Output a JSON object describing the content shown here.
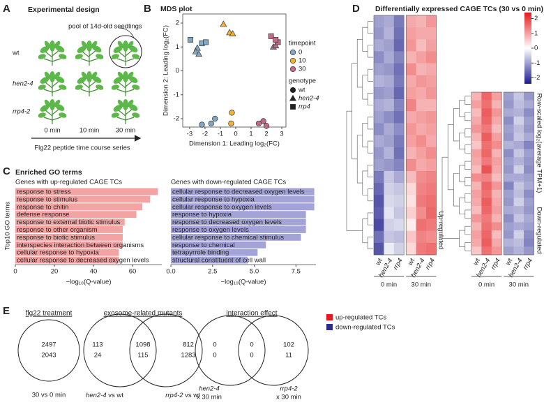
{
  "panels": [
    {
      "letter": "A",
      "title": "Experimental design"
    },
    {
      "letter": "B"
    },
    {
      "letter": "C",
      "title": "Enriched GO terms"
    },
    {
      "letter": "D"
    },
    {
      "letter": "E"
    }
  ],
  "design": {
    "pool_label": "pool of 14d-old seedlings",
    "genotypes": [
      "wt",
      "hen2-4",
      "rrp4-2"
    ],
    "times": [
      "0 min",
      "10 min",
      "30 min"
    ],
    "series_label": "Flg22 peptide time course series"
  },
  "chart_data": [
    {
      "type": "scatter",
      "title": "MDS plot",
      "xlabel": "Dimension 1: Leading log₂(FC)",
      "ylabel": "Dimension 2: Leading log₂(FC)",
      "xlim": [
        -3.45,
        3.27
      ],
      "ylim": [
        -2.35,
        2.38
      ],
      "xticks": [
        -3,
        -2,
        -1,
        0,
        1,
        2,
        3
      ],
      "yticks": [
        -2,
        -1,
        0,
        1,
        2
      ],
      "legend": {
        "color_title": "timepoint",
        "color_items": [
          "0",
          "10",
          "30"
        ],
        "colors": [
          "#7ea6c7",
          "#f2b134",
          "#c06a86"
        ],
        "shape_title": "genotype",
        "shape_items": [
          "wt",
          "hen2-4",
          "rrp4"
        ],
        "shapes": [
          "circle",
          "triangle",
          "square"
        ]
      },
      "series": [
        {
          "color": 0,
          "shape": 0,
          "x": [
            -2.2,
            -1.6,
            -1.35
          ],
          "y": [
            -2.25,
            -2.2,
            -2.0
          ]
        },
        {
          "color": 0,
          "shape": 1,
          "x": [
            -2.5,
            -2.6,
            -2.4
          ],
          "y": [
            0.95,
            0.8,
            0.7
          ]
        },
        {
          "color": 0,
          "shape": 2,
          "x": [
            -2.95,
            -2.2,
            -1.95
          ],
          "y": [
            1.3,
            1.15,
            1.2
          ]
        },
        {
          "color": 1,
          "shape": 0,
          "x": [
            -0.25,
            -0.3
          ],
          "y": [
            -1.75,
            -2.2
          ]
        },
        {
          "color": 1,
          "shape": 1,
          "x": [
            -0.8,
            -0.4,
            -0.2
          ],
          "y": [
            1.95,
            1.6,
            1.55
          ]
        },
        {
          "color": 2,
          "shape": 0,
          "x": [
            1.5,
            1.8,
            2.0
          ],
          "y": [
            -2.2,
            -2.1,
            -2.3
          ]
        },
        {
          "color": 2,
          "shape": 1,
          "x": [
            2.45,
            2.6
          ],
          "y": [
            1.0,
            1.05
          ]
        },
        {
          "color": 2,
          "shape": 2,
          "x": [
            2.3,
            2.75,
            2.6
          ],
          "y": [
            1.45,
            1.2,
            1.3
          ]
        }
      ]
    },
    {
      "type": "barh",
      "subtitle": "Genes with up-regulated CAGE TCs",
      "ylabel": "Top10 GO terms",
      "xlabel": "−log₁₀(Q-value)",
      "color": "#f4a3a3",
      "categories": [
        "response to stress",
        "response to stimulus",
        "response to chitin",
        "defense response",
        "response to external biotic stimulus",
        "response to other organism",
        "response to biotic stimulus",
        "interspecies interaction between organisms",
        "cellular response to hypoxia",
        "cellular response to decreased oxygen levels"
      ],
      "values": [
        73,
        69,
        65,
        62,
        56,
        55,
        55,
        55,
        53,
        53
      ],
      "xlim": [
        0,
        75
      ],
      "xticks": [
        0,
        20,
        40,
        60
      ]
    },
    {
      "type": "barh",
      "subtitle": "Genes with down-regulated CAGE TCs",
      "xlabel": "−log₁₀(Q-value)",
      "color": "#a3a3d8",
      "categories": [
        "cellular response to decreased oxygen levels",
        "cellular response to hypoxia",
        "cellular response to oxygen levels",
        "response to hypoxia",
        "response to decreased oxygen levels",
        "response to oxygen levels",
        "cellular response to chemical stimulus",
        "response to chemical",
        "tetrapyrrole binding",
        "structural constituent of cell wall"
      ],
      "values": [
        8.6,
        8.6,
        8.6,
        8.1,
        8.1,
        8.1,
        7.8,
        5.7,
        5.2,
        4.6
      ],
      "xlim": [
        0,
        8.7
      ],
      "xticks": [
        {
          "value": 0,
          "label": "0.0"
        },
        2.5,
        {
          "value": 5,
          "label": "5.0"
        },
        7.5
      ]
    },
    {
      "type": "heatmap",
      "title": "Differentially expressed CAGE TCs (30 vs 0 min)",
      "colorbar": {
        "label": "Row-scaled log₂(average TPM+1)",
        "ticks": [
          2,
          1,
          0,
          -1,
          -2
        ],
        "range": [
          -2.4,
          2.4
        ],
        "colors": [
          "#1c1c8c",
          "#ffffff",
          "#e41a1c"
        ]
      },
      "columns": [
        "wt",
        "hen2-4",
        "rrp4"
      ],
      "groups": [
        "0 min",
        "30 min"
      ],
      "blocks": [
        {
          "label": "Up-regulated",
          "label_color": "#e41a1c",
          "rows": [
            [
              -1.0,
              -0.9,
              -1.4,
              0.9,
              0.8,
              1.1
            ],
            [
              -1.1,
              -0.8,
              -1.5,
              1.0,
              0.9,
              0.9
            ],
            [
              -0.9,
              -1.0,
              -1.6,
              1.1,
              0.7,
              1.0
            ],
            [
              -1.2,
              -0.9,
              -1.3,
              0.8,
              1.0,
              1.2
            ],
            [
              -1.0,
              -1.1,
              -1.5,
              1.2,
              0.8,
              0.9
            ],
            [
              -0.8,
              -0.9,
              -1.4,
              0.9,
              1.1,
              1.0
            ],
            [
              -1.1,
              -1.0,
              -1.6,
              1.0,
              0.9,
              1.1
            ],
            [
              -0.9,
              -0.8,
              -1.3,
              1.3,
              0.8,
              0.8
            ],
            [
              -1.0,
              -1.2,
              -1.5,
              0.9,
              1.0,
              1.1
            ],
            [
              -1.2,
              -0.9,
              -1.2,
              1.1,
              0.9,
              1.0
            ],
            [
              -0.9,
              -1.0,
              -1.4,
              1.0,
              1.2,
              0.9
            ],
            [
              -1.1,
              -0.8,
              -1.5,
              0.8,
              1.0,
              1.2
            ],
            [
              -1.0,
              -1.1,
              -1.3,
              1.2,
              0.9,
              1.0
            ],
            [
              -1.4,
              -0.6,
              -0.9,
              0.7,
              1.2,
              1.3
            ],
            [
              -1.6,
              -0.5,
              -0.6,
              0.4,
              1.3,
              1.4
            ],
            [
              -1.8,
              -0.4,
              -0.5,
              0.3,
              1.4,
              1.5
            ],
            [
              -1.7,
              -0.3,
              -0.6,
              0.5,
              1.2,
              1.6
            ],
            [
              -1.9,
              -0.5,
              -0.4,
              0.2,
              1.5,
              1.4
            ],
            [
              -1.5,
              -0.6,
              -0.7,
              0.6,
              1.3,
              1.2
            ],
            [
              -1.8,
              -0.2,
              -0.5,
              0.4,
              1.4,
              1.5
            ]
          ]
        },
        {
          "label": "Down-regulated",
          "label_color": "#3a3aa0",
          "rows": [
            [
              0.8,
              1.6,
              1.0,
              -1.0,
              -0.6,
              -1.1
            ],
            [
              1.0,
              1.5,
              0.8,
              -1.1,
              -0.7,
              -0.9
            ],
            [
              0.7,
              1.7,
              1.1,
              -0.9,
              -0.8,
              -1.2
            ],
            [
              0.9,
              1.6,
              0.9,
              -1.2,
              -0.5,
              -1.0
            ],
            [
              1.1,
              1.4,
              0.7,
              -1.0,
              -0.7,
              -1.1
            ],
            [
              0.8,
              1.7,
              1.0,
              -1.1,
              -0.6,
              -0.9
            ],
            [
              0.6,
              1.5,
              1.2,
              -0.8,
              -0.9,
              -1.3
            ],
            [
              1.0,
              1.6,
              0.8,
              -1.2,
              -0.6,
              -1.0
            ],
            [
              0.9,
              1.4,
              1.0,
              -1.0,
              -0.8,
              -1.1
            ],
            [
              0.7,
              1.8,
              0.9,
              -1.1,
              -0.5,
              -1.2
            ],
            [
              1.2,
              1.3,
              0.7,
              -0.9,
              -0.9,
              -1.0
            ],
            [
              0.8,
              1.6,
              1.1,
              -1.3,
              -0.6,
              -0.9
            ],
            [
              1.0,
              1.5,
              0.8,
              -1.0,
              -0.7,
              -1.2
            ],
            [
              0.9,
              1.7,
              0.9,
              -1.1,
              -0.5,
              -1.0
            ],
            [
              0.7,
              1.6,
              1.0,
              -0.9,
              -0.8,
              -1.1
            ],
            [
              1.1,
              1.4,
              0.8,
              -1.2,
              -0.6,
              -0.9
            ],
            [
              0.8,
              1.5,
              1.2,
              -1.0,
              -0.9,
              -1.0
            ],
            [
              1.0,
              1.6,
              0.7,
              -1.1,
              -0.5,
              -1.2
            ],
            [
              0.9,
              1.7,
              0.9,
              -0.8,
              -0.7,
              -1.3
            ],
            [
              0.6,
              1.5,
              1.1,
              -1.0,
              -0.8,
              -1.1
            ]
          ]
        }
      ]
    }
  ],
  "venn": {
    "legend": [
      {
        "label": "up-regulated TCs",
        "color": "#e41a1c"
      },
      {
        "label": "down-regulated TCs",
        "color": "#2b2b8c"
      }
    ],
    "diagrams": [
      {
        "title": "flg22 treatment",
        "regions": [
          {
            "up": 2497,
            "down": 2043
          }
        ],
        "set_labels": [
          {
            "text": "30 vs 0 min"
          }
        ]
      },
      {
        "title": "exosome-related mutants",
        "regions": [
          {
            "up": 113,
            "down": 24
          },
          {
            "up": 1098,
            "down": 115
          },
          {
            "up": 812,
            "down": 1283
          }
        ],
        "set_labels": [
          {
            "mutant": "hen2-4",
            "text": "vs wt"
          },
          {
            "mutant": "rrp4-2",
            "text": "vs wt"
          }
        ]
      },
      {
        "title": "interaction effect",
        "regions": [
          {
            "up": 0,
            "down": 0
          },
          {
            "up": 0,
            "down": 0
          },
          {
            "up": 102,
            "down": 11
          }
        ],
        "set_labels": [
          {
            "mutant": "hen2-4",
            "text": "x 30 min"
          },
          {
            "mutant": "rrp4-2",
            "text": "x 30 min"
          }
        ]
      }
    ]
  }
}
